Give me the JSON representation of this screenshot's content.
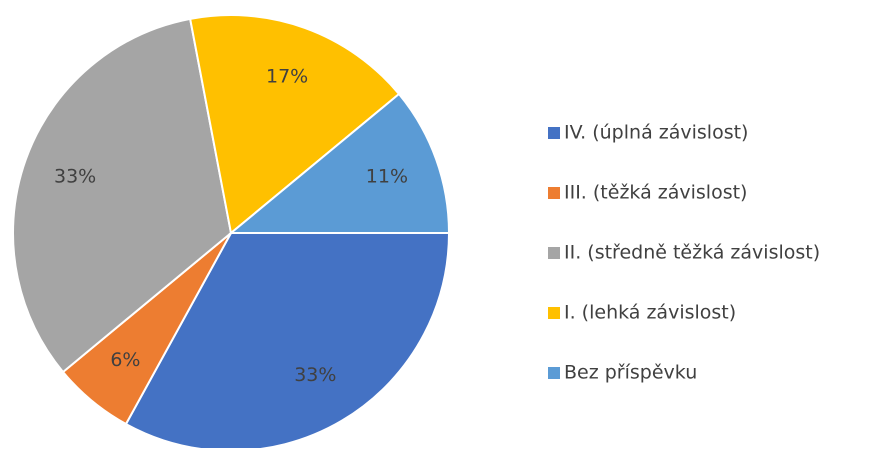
{
  "chart_data": {
    "type": "pie",
    "categories": [
      "IV. (úplná závislost)",
      "III. (těžká závislost)",
      "II. (středně těžká závislost)",
      "I. (lehká závislost)",
      "Bez příspěvku"
    ],
    "values": [
      33,
      6,
      33,
      17,
      11
    ],
    "value_labels": [
      "33%",
      "6%",
      "33%",
      "17%",
      "11%"
    ],
    "colors": [
      "#4472c4",
      "#ed7d31",
      "#a5a5a5",
      "#ffc000",
      "#5b9bd5"
    ],
    "legend": "right"
  }
}
